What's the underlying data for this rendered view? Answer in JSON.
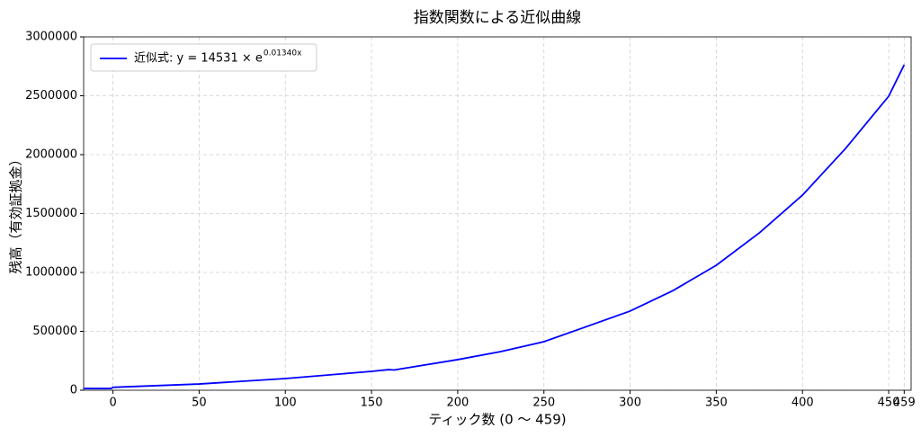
{
  "chart_data": {
    "type": "line",
    "title": "指数関数による近似曲線",
    "x_label": "ティック数 (0 ～ 459)",
    "y_label": "残高（有効証拠金）",
    "x": [
      -17,
      -1,
      0,
      50,
      100,
      150,
      160,
      163,
      200,
      225,
      250,
      300,
      325,
      350,
      375,
      400,
      425,
      450,
      459
    ],
    "series": [
      {
        "name": "近似式: y = 14531 × e",
        "name_exponent": "0.01340x",
        "color": "#0000ff",
        "values": [
          15000,
          15000,
          25000,
          53000,
          99000,
          160000,
          175000,
          172000,
          260000,
          328000,
          412000,
          672000,
          847000,
          1061000,
          1336000,
          1657000,
          2053000,
          2496000,
          2763000
        ]
      }
    ],
    "xlim": [
      -17,
      463
    ],
    "ylim": [
      0,
      3000000
    ],
    "xticks": [
      0,
      50,
      100,
      150,
      200,
      250,
      300,
      350,
      400,
      450,
      459
    ],
    "yticks": [
      0,
      500000,
      1000000,
      1500000,
      2000000,
      2500000,
      3000000
    ],
    "grid": true,
    "legend": "upper-left"
  }
}
